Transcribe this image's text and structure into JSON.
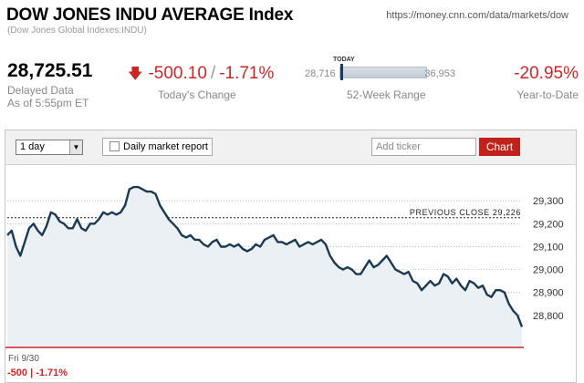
{
  "header": {
    "title": "DOW JONES INDU AVERAGE Index",
    "subtitle": "(Dow Jones Global Indexes:INDU)",
    "url": "https://money.cnn.com/data/markets/dow"
  },
  "quote": {
    "price": "28,725.51",
    "delayed_line1": "Delayed Data",
    "delayed_line2": "As of 5:55pm ET",
    "change_points": "-500.10",
    "change_separator": "/",
    "change_percent": "-1.71%",
    "change_label": "Today's Change",
    "range_today_label": "TODAY",
    "range_low": "28,716",
    "range_high": "36,953",
    "range_label": "52-Week Range",
    "ytd_value": "-20.95%",
    "ytd_label": "Year-to-Date"
  },
  "toolbar": {
    "period_selected": "1 day",
    "daily_report_label": "Daily market report",
    "ticker_placeholder": "Add ticker",
    "chart_button_label": "Chart"
  },
  "footer": {
    "date": "Fri 9/30",
    "change": "-500 | -1.71%"
  },
  "colors": {
    "negative": "#c62828",
    "line": "#1b3a52",
    "area": "#eaf0f4",
    "chart_button": "#c0211a"
  },
  "chart_data": {
    "type": "area",
    "ylim": [
      28660,
      29460
    ],
    "yticks": [
      28800,
      28900,
      29000,
      29100,
      29200,
      29300
    ],
    "ytick_labels": [
      "28,800",
      "28,900",
      "29,000",
      "29,100",
      "29,200",
      "29,300"
    ],
    "previous_close": 29226,
    "previous_close_label": "PREVIOUS CLOSE 29,226",
    "xlabel": "Fri 9/30",
    "series": [
      {
        "values": [
          29150,
          29170,
          29100,
          29060,
          29120,
          29180,
          29200,
          29170,
          29150,
          29190,
          29250,
          29240,
          29210,
          29200,
          29180,
          29180,
          29220,
          29180,
          29170,
          29200,
          29200,
          29220,
          29250,
          29240,
          29250,
          29240,
          29250,
          29280,
          29350,
          29360,
          29360,
          29350,
          29340,
          29340,
          29330,
          29280,
          29250,
          29220,
          29200,
          29180,
          29150,
          29140,
          29150,
          29130,
          29130,
          29110,
          29100,
          29120,
          29130,
          29100,
          29100,
          29110,
          29100,
          29110,
          29090,
          29080,
          29090,
          29110,
          29100,
          29130,
          29140,
          29150,
          29120,
          29120,
          29110,
          29120,
          29130,
          29100,
          29110,
          29120,
          29110,
          29120,
          29130,
          29110,
          29060,
          29030,
          29010,
          29000,
          29010,
          29000,
          28980,
          28980,
          29010,
          29040,
          29010,
          29020,
          29040,
          29060,
          29030,
          29000,
          28990,
          28980,
          28990,
          28950,
          28940,
          28910,
          28930,
          28950,
          28930,
          28940,
          28980,
          28970,
          28940,
          28960,
          28930,
          28910,
          28950,
          28940,
          28920,
          28930,
          28890,
          28880,
          28910,
          28910,
          28900,
          28850,
          28820,
          28800,
          28750
        ]
      }
    ]
  }
}
